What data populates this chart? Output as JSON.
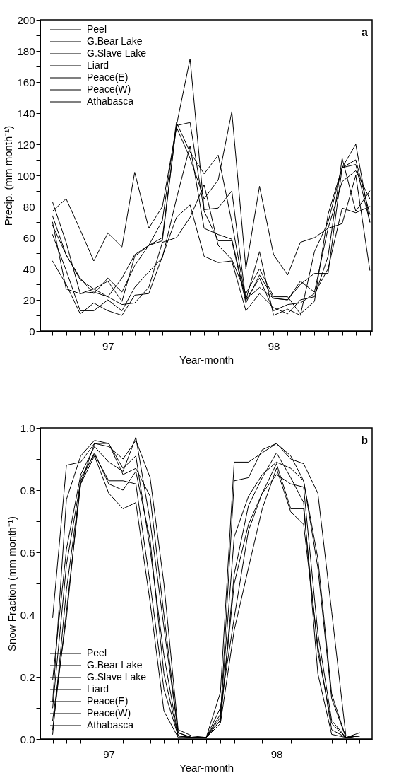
{
  "chart_data": [
    {
      "type": "line",
      "xlabel": "Year-month",
      "ylabel": "Precip. (mm month⁻¹)",
      "annotations": [
        "a"
      ],
      "legend": "top left",
      "x": [
        "1996-09",
        "1996-10",
        "1996-11",
        "1996-12",
        "1997-01",
        "1997-02",
        "1997-03",
        "1997-04",
        "1997-05",
        "1997-06",
        "1997-07",
        "1997-08",
        "1997-09",
        "1997-10",
        "1997-11",
        "1997-12",
        "1998-01",
        "1998-02",
        "1998-03",
        "1998-04",
        "1998-05",
        "1998-06",
        "1998-07",
        "1998-08"
      ],
      "xlim": [
        "1996-08-05",
        "1998-08-06"
      ],
      "xticks": [
        {
          "value": "1996-09",
          "label": null
        },
        {
          "value": "1996-10",
          "label": null
        },
        {
          "value": "1996-11",
          "label": null
        },
        {
          "value": "1996-12",
          "label": null
        },
        {
          "value": "1997-01",
          "label": "97"
        },
        {
          "value": "1997-02",
          "label": null
        },
        {
          "value": "1997-03",
          "label": null
        },
        {
          "value": "1997-04",
          "label": null
        },
        {
          "value": "1997-05",
          "label": null
        },
        {
          "value": "1997-06",
          "label": null
        },
        {
          "value": "1997-07",
          "label": null
        },
        {
          "value": "1997-08",
          "label": null
        },
        {
          "value": "1997-09",
          "label": null
        },
        {
          "value": "1997-10",
          "label": null
        },
        {
          "value": "1997-11",
          "label": null
        },
        {
          "value": "1997-12",
          "label": null
        },
        {
          "value": "1998-01",
          "label": "98"
        },
        {
          "value": "1998-02",
          "label": null
        },
        {
          "value": "1998-03",
          "label": null
        },
        {
          "value": "1998-04",
          "label": null
        },
        {
          "value": "1998-05",
          "label": null
        },
        {
          "value": "1998-06",
          "label": null
        },
        {
          "value": "1998-07",
          "label": null
        },
        {
          "value": "1998-08",
          "label": null
        }
      ],
      "ylim": [
        0,
        200
      ],
      "yticks": [
        0,
        {
          "value": 10,
          "label": null
        },
        20,
        {
          "value": 30,
          "label": null
        },
        40,
        {
          "value": 50,
          "label": null
        },
        60,
        {
          "value": 70,
          "label": null
        },
        80,
        {
          "value": 90,
          "label": null
        },
        100,
        {
          "value": 110,
          "label": null
        },
        120,
        {
          "value": 130,
          "label": null
        },
        140,
        {
          "value": 150,
          "label": null
        },
        160,
        {
          "value": 170,
          "label": null
        },
        180,
        {
          "value": 190,
          "label": null
        },
        200
      ],
      "series": [
        {
          "name": "Peel",
          "color": "#000000",
          "values": [
            70,
            27,
            24,
            25,
            22,
            17,
            18,
            28,
            57,
            60,
            73,
            94,
            55,
            46,
            24,
            40,
            22,
            22,
            11,
            19,
            75,
            105,
            110,
            75
          ]
        },
        {
          "name": "G.Bear Lake",
          "color": "#000000",
          "values": [
            45,
            30,
            11,
            18,
            13,
            10,
            23,
            24,
            48,
            73,
            81,
            48,
            44,
            45,
            13,
            24,
            15,
            11,
            20,
            22,
            48,
            111,
            77,
            90
          ]
        },
        {
          "name": "G.Slave Lake",
          "color": "#000000",
          "values": [
            62,
            39,
            13,
            13,
            20,
            13,
            28,
            38,
            47,
            85,
            119,
            66,
            62,
            59,
            20,
            34,
            13,
            17,
            18,
            24,
            40,
            79,
            76,
            80
          ]
        },
        {
          "name": "Liard",
          "color": "#000000",
          "values": [
            83,
            57,
            24,
            27,
            22,
            34,
            49,
            55,
            60,
            132,
            175,
            78,
            79,
            90,
            20,
            51,
            10,
            14,
            10,
            51,
            70,
            105,
            120,
            70
          ]
        },
        {
          "name": "Peace(E)",
          "color": "#000000",
          "values": [
            68,
            49,
            34,
            24,
            34,
            25,
            42,
            55,
            58,
            132,
            134,
            77,
            58,
            58,
            18,
            36,
            21,
            20,
            32,
            25,
            66,
            69,
            100,
            39
          ]
        },
        {
          "name": "Peace(W)",
          "color": "#000000",
          "values": [
            77,
            85,
            65,
            45,
            63,
            54,
            102,
            66,
            80,
            131,
            111,
            85,
            97,
            141,
            40,
            93,
            49,
            36,
            57,
            60,
            66,
            96,
            103,
            85
          ]
        },
        {
          "name": "Athabasca",
          "color": "#000000",
          "values": [
            74,
            49,
            33,
            27,
            32,
            19,
            48,
            55,
            71,
            134,
            115,
            101,
            113,
            70,
            20,
            28,
            21,
            20,
            30,
            37,
            37,
            105,
            107,
            70
          ]
        }
      ]
    },
    {
      "type": "line",
      "xlabel": "Year-month",
      "ylabel": "Snow Fraction (mm month⁻¹)",
      "annotations": [
        "b"
      ],
      "legend": "bottom left",
      "x": [
        "1996-09",
        "1996-10",
        "1996-11",
        "1996-12",
        "1997-01",
        "1997-02",
        "1997-03",
        "1997-04",
        "1997-05",
        "1997-06",
        "1997-07",
        "1997-08",
        "1997-09",
        "1997-10",
        "1997-11",
        "1997-12",
        "1998-01",
        "1998-02",
        "1998-03",
        "1998-04",
        "1998-05",
        "1998-06",
        "1998-07"
      ],
      "xlim": [
        "1996-08-05",
        "1998-07-28"
      ],
      "xticks": [
        {
          "value": "1996-09",
          "label": null
        },
        {
          "value": "1996-10",
          "label": null
        },
        {
          "value": "1996-11",
          "label": null
        },
        {
          "value": "1996-12",
          "label": null
        },
        {
          "value": "1997-01",
          "label": "97"
        },
        {
          "value": "1997-02",
          "label": null
        },
        {
          "value": "1997-03",
          "label": null
        },
        {
          "value": "1997-04",
          "label": null
        },
        {
          "value": "1997-05",
          "label": null
        },
        {
          "value": "1997-06",
          "label": null
        },
        {
          "value": "1997-07",
          "label": null
        },
        {
          "value": "1997-08",
          "label": null
        },
        {
          "value": "1997-09",
          "label": null
        },
        {
          "value": "1997-10",
          "label": null
        },
        {
          "value": "1997-11",
          "label": null
        },
        {
          "value": "1997-12",
          "label": null
        },
        {
          "value": "1998-01",
          "label": "98"
        },
        {
          "value": "1998-02",
          "label": null
        },
        {
          "value": "1998-03",
          "label": null
        },
        {
          "value": "1998-04",
          "label": null
        },
        {
          "value": "1998-05",
          "label": null
        },
        {
          "value": "1998-06",
          "label": null
        },
        {
          "value": "1998-07",
          "label": null
        }
      ],
      "ylim": [
        0,
        1
      ],
      "yticks": [
        {
          "value": 0,
          "label": "0.0"
        },
        {
          "value": 0.1,
          "label": null
        },
        {
          "value": 0.2,
          "label": "0.2"
        },
        {
          "value": 0.3,
          "label": null
        },
        {
          "value": 0.4,
          "label": "0.4"
        },
        {
          "value": 0.5,
          "label": null
        },
        {
          "value": 0.6,
          "label": "0.6"
        },
        {
          "value": 0.7,
          "label": null
        },
        {
          "value": 0.8,
          "label": "0.8"
        },
        {
          "value": 0.9,
          "label": null
        },
        {
          "value": 1,
          "label": "1.0"
        }
      ],
      "series": [
        {
          "name": "Peel",
          "color": "#000000",
          "values": [
            0.39,
            0.88,
            0.89,
            0.95,
            0.94,
            0.9,
            0.96,
            0.84,
            0.5,
            0.03,
            0.01,
            0.005,
            0.15,
            0.89,
            0.89,
            0.92,
            0.95,
            0.9,
            0.885,
            0.79,
            0.41,
            0.01,
            0.01
          ]
        },
        {
          "name": "G.Bear Lake",
          "color": "#000000",
          "values": [
            0.12,
            0.77,
            0.91,
            0.96,
            0.95,
            0.85,
            0.87,
            0.78,
            0.4,
            0.02,
            0.005,
            0.005,
            0.07,
            0.83,
            0.84,
            0.93,
            0.95,
            0.91,
            0.83,
            0.58,
            0.145,
            0.005,
            0.01
          ]
        },
        {
          "name": "G.Slave Lake",
          "color": "#000000",
          "values": [
            0.015,
            0.48,
            0.82,
            0.95,
            0.95,
            0.87,
            0.91,
            0.61,
            0.27,
            0.01,
            0.005,
            0.005,
            0.06,
            0.53,
            0.75,
            0.84,
            0.92,
            0.84,
            0.76,
            0.21,
            0.015,
            0.005,
            0.01
          ]
        },
        {
          "name": "Liard",
          "color": "#000000",
          "values": [
            0.19,
            0.61,
            0.85,
            0.94,
            0.89,
            0.86,
            0.97,
            0.7,
            0.36,
            0.02,
            0.005,
            0.005,
            0.08,
            0.65,
            0.78,
            0.85,
            0.89,
            0.87,
            0.83,
            0.55,
            0.13,
            0.005,
            0.01
          ]
        },
        {
          "name": "Peace(E)",
          "color": "#000000",
          "values": [
            0.03,
            0.41,
            0.82,
            0.91,
            0.79,
            0.74,
            0.76,
            0.44,
            0.09,
            0.005,
            0.005,
            0.005,
            0.05,
            0.35,
            0.55,
            0.74,
            0.87,
            0.73,
            0.69,
            0.3,
            0.03,
            0.005,
            0.01
          ]
        },
        {
          "name": "Peace(W)",
          "color": "#000000",
          "values": [
            0.1,
            0.56,
            0.83,
            0.92,
            0.82,
            0.8,
            0.86,
            0.64,
            0.21,
            0.01,
            0.005,
            0.005,
            0.06,
            0.5,
            0.69,
            0.79,
            0.85,
            0.82,
            0.81,
            0.34,
            0.06,
            0.005,
            0.02
          ]
        },
        {
          "name": "Athabasca",
          "color": "#000000",
          "values": [
            0.06,
            0.39,
            0.84,
            0.915,
            0.83,
            0.83,
            0.82,
            0.5,
            0.16,
            0.01,
            0.005,
            0.005,
            0.1,
            0.39,
            0.67,
            0.79,
            0.885,
            0.74,
            0.74,
            0.28,
            0.05,
            0.005,
            0.01
          ]
        }
      ]
    }
  ]
}
